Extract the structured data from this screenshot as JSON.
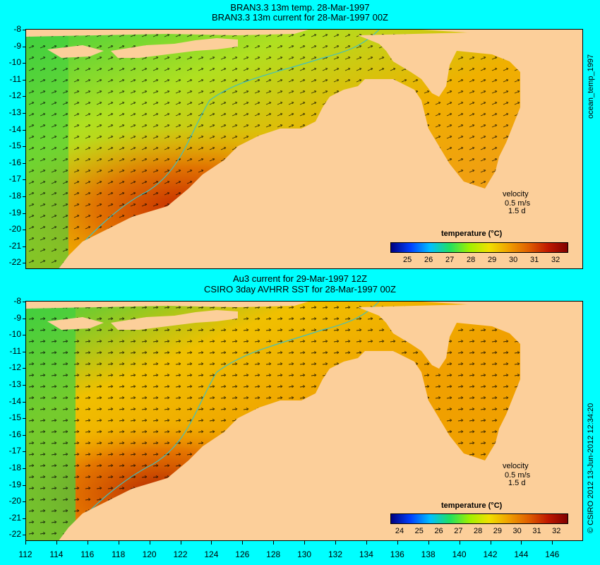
{
  "top_panel": {
    "title_line1": "BRAN3.3 13m temp. 28-Mar-1997",
    "title_line2": "BRAN3.3 13m current for 28-Mar-1997 00Z",
    "velocity_label": "velocity",
    "velocity_scale": "0.5 m/s",
    "velocity_time": "1.5 d",
    "colorbar_title": "temperature (°C)",
    "colorbar_ticks": [
      "25",
      "26",
      "27",
      "28",
      "29",
      "30",
      "31",
      "32"
    ],
    "side_label": "ocean_temp_1997"
  },
  "bottom_panel": {
    "title_line1": "Au3 current for 29-Mar-1997 12Z",
    "title_line2": "CSIRO 3day AVHRR SST for 28-Mar-1997 00Z",
    "velocity_label": "velocity",
    "velocity_scale": "0.5 m/s",
    "velocity_time": "1.5 d",
    "colorbar_title": "temperature (°C)",
    "colorbar_ticks": [
      "24",
      "25",
      "26",
      "27",
      "28",
      "29",
      "30",
      "31",
      "32"
    ],
    "side_label": "© CSIRO 2012  13-Jun-2012 12:34:20"
  },
  "latitude_labels": [
    "-8",
    "-9",
    "-10",
    "-11",
    "-12",
    "-13",
    "-14",
    "-15",
    "-16",
    "-17",
    "-18",
    "-19",
    "-20",
    "-21",
    "-22"
  ],
  "longitude_labels": [
    "112",
    "114",
    "116",
    "118",
    "120",
    "122",
    "124",
    "126",
    "128",
    "130",
    "132",
    "134",
    "136",
    "138",
    "140",
    "142",
    "144",
    "146"
  ],
  "colors": {
    "background": "#00ffff",
    "land": "#fccf9a",
    "colorbar": [
      "#000080",
      "#0040ff",
      "#00c0ff",
      "#20e060",
      "#a0f000",
      "#f0e000",
      "#f0a000",
      "#e06000",
      "#c01800",
      "#800000"
    ]
  }
}
